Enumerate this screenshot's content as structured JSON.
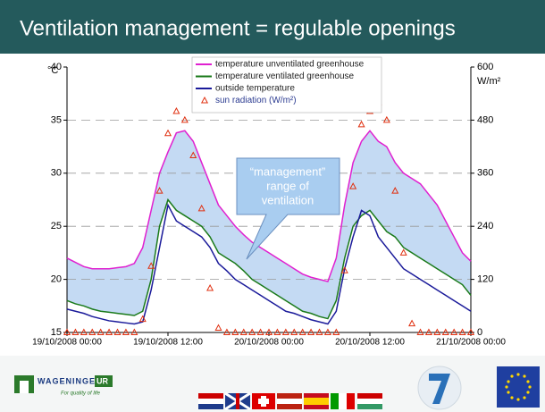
{
  "slide": {
    "title": "Ventilation management = regulable openings",
    "footer": {
      "logo_name": "WAGENINGEN",
      "logo_suffix": "UR",
      "tagline": "For quality of life"
    }
  },
  "chart_data": {
    "type": "line",
    "x": [
      0,
      1,
      2,
      3,
      4,
      5,
      6,
      7,
      8,
      9,
      10,
      11,
      12,
      13,
      14,
      15,
      16,
      17,
      18,
      19,
      20,
      21,
      22,
      23,
      24,
      25,
      26,
      27,
      28,
      29,
      30,
      31,
      32,
      33,
      34,
      35,
      36,
      37,
      38,
      39,
      40,
      41,
      42,
      43,
      44,
      45,
      46,
      47,
      48
    ],
    "xlim": [
      0,
      48
    ],
    "xticks": [
      {
        "value": 0,
        "label": "19/10/2008 00:00"
      },
      {
        "value": 12,
        "label": "19/10/2008 12:00"
      },
      {
        "value": 24,
        "label": "20/10/2008 00:00"
      },
      {
        "value": 36,
        "label": "20/10/2008 12:00"
      },
      {
        "value": 48,
        "label": "21/10/2008 00:00"
      }
    ],
    "ylim": [
      15,
      40
    ],
    "yticks": [
      15,
      20,
      25,
      30,
      35,
      40
    ],
    "ylabel": "°C",
    "y2lim": [
      0,
      600
    ],
    "y2ticks": [
      0,
      120,
      240,
      360,
      480,
      600
    ],
    "y2label": "W/m²",
    "grid": true,
    "legend": "top",
    "fill_between": {
      "series": [
        0,
        1
      ],
      "color": "#c4daf3"
    },
    "annotation": [
      "“management”",
      "range of",
      "ventilation"
    ],
    "series": [
      {
        "name": "temperature unventilated greenhouse",
        "color": "#e020d0",
        "values": [
          22,
          21.6,
          21.2,
          21,
          21,
          21,
          21.1,
          21.2,
          21.5,
          23,
          26.5,
          30,
          32,
          33.8,
          34,
          33,
          31,
          29,
          27,
          26,
          25,
          24.2,
          23.5,
          23,
          22.5,
          22,
          21.5,
          21,
          20.5,
          20.2,
          20,
          19.8,
          22,
          27,
          31,
          33,
          34,
          33,
          32.5,
          31,
          30,
          29.5,
          29,
          28,
          27,
          25.5,
          24,
          22.5,
          21.7
        ]
      },
      {
        "name": "temperature ventilated greenhouse",
        "color": "#1a7a1a",
        "values": [
          18,
          17.7,
          17.5,
          17.2,
          17,
          16.9,
          16.8,
          16.7,
          16.6,
          17,
          20,
          25,
          27.5,
          26.5,
          26,
          25.5,
          25,
          24,
          22.5,
          22,
          21.5,
          20.8,
          20,
          19.5,
          19,
          18.5,
          18,
          17.5,
          17,
          16.8,
          16.5,
          16.3,
          18,
          22,
          25,
          26,
          26.5,
          25.5,
          24.5,
          24,
          23,
          22.5,
          22,
          21.5,
          21,
          20.5,
          20,
          19.5,
          18.5
        ]
      },
      {
        "name": "outside temperature",
        "color": "#1a1a9a",
        "values": [
          17.2,
          17,
          16.8,
          16.5,
          16.3,
          16.1,
          16,
          15.9,
          15.8,
          16,
          19,
          23,
          27,
          25.5,
          25,
          24.5,
          24,
          23,
          21.5,
          20.8,
          20,
          19.5,
          19,
          18.5,
          18,
          17.5,
          17,
          16.8,
          16.5,
          16.2,
          16,
          15.8,
          17,
          21,
          24,
          26.5,
          26,
          24,
          23,
          22,
          21,
          20.5,
          20,
          19.5,
          19,
          18.5,
          18,
          17.5,
          17
        ]
      },
      {
        "name": "sun radiation (W/m²)",
        "color": "#e03010",
        "axis": "y2",
        "marker": "triangle",
        "values": [
          0,
          0,
          0,
          0,
          0,
          0,
          0,
          0,
          0,
          30,
          150,
          320,
          450,
          500,
          480,
          400,
          280,
          100,
          10,
          0,
          0,
          0,
          0,
          0,
          0,
          0,
          0,
          0,
          0,
          0,
          0,
          0,
          0,
          140,
          330,
          470,
          500,
          520,
          480,
          320,
          180,
          20,
          0,
          0,
          0,
          0,
          0,
          0,
          0
        ]
      }
    ]
  }
}
